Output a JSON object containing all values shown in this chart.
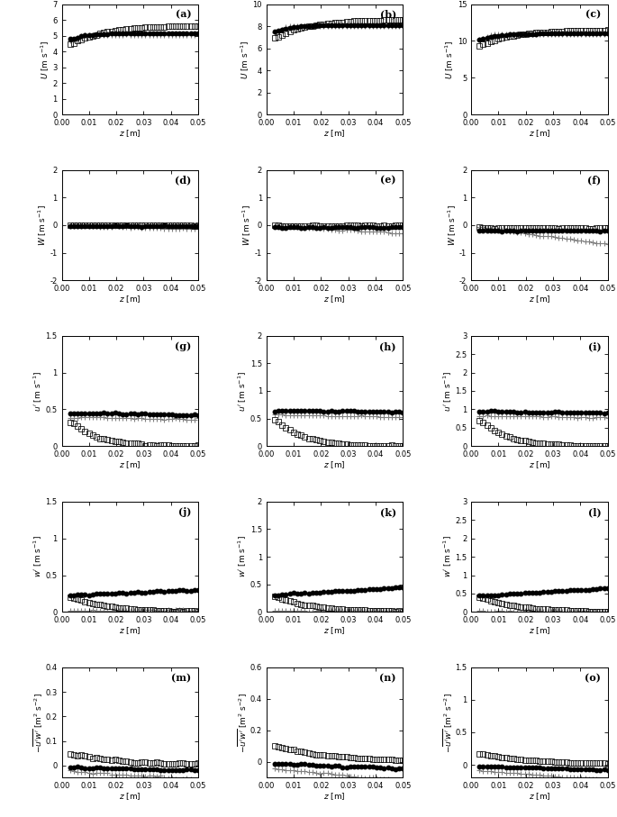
{
  "panels": [
    {
      "label": "(a)",
      "row": 0,
      "col": 0,
      "ylabel": "$U$ [m s$^{-1}$]",
      "ylim": [
        0,
        7
      ],
      "yticks": [
        0,
        1,
        2,
        3,
        4,
        5,
        6,
        7
      ]
    },
    {
      "label": "(b)",
      "row": 0,
      "col": 1,
      "ylabel": "$U$ [m s$^{-1}$]",
      "ylim": [
        0,
        10
      ],
      "yticks": [
        0,
        2,
        4,
        6,
        8,
        10
      ]
    },
    {
      "label": "(c)",
      "row": 0,
      "col": 2,
      "ylabel": "$U$ [m s$^{-1}$]",
      "ylim": [
        0,
        15
      ],
      "yticks": [
        0,
        5,
        10,
        15
      ]
    },
    {
      "label": "(d)",
      "row": 1,
      "col": 0,
      "ylabel": "$W$ [m s$^{-1}$]",
      "ylim": [
        -2,
        2
      ],
      "yticks": [
        -2,
        -1,
        0,
        1,
        2
      ]
    },
    {
      "label": "(e)",
      "row": 1,
      "col": 1,
      "ylabel": "$W$ [m s$^{-1}$]",
      "ylim": [
        -2,
        2
      ],
      "yticks": [
        -2,
        -1,
        0,
        1,
        2
      ]
    },
    {
      "label": "(f)",
      "row": 1,
      "col": 2,
      "ylabel": "$W$ [m s$^{-1}$]",
      "ylim": [
        -2,
        2
      ],
      "yticks": [
        -2,
        -1,
        0,
        1,
        2
      ]
    },
    {
      "label": "(g)",
      "row": 2,
      "col": 0,
      "ylabel": "$u^{\\prime}$ [m s$^{-1}$]",
      "ylim": [
        0,
        1.5
      ],
      "yticks": [
        0.0,
        0.5,
        1.0,
        1.5
      ]
    },
    {
      "label": "(h)",
      "row": 2,
      "col": 1,
      "ylabel": "$u^{\\prime}$ [m s$^{-1}$]",
      "ylim": [
        0,
        2.0
      ],
      "yticks": [
        0.0,
        0.5,
        1.0,
        1.5,
        2.0
      ]
    },
    {
      "label": "(i)",
      "row": 2,
      "col": 2,
      "ylabel": "$u^{\\prime}$ [m s$^{-1}$]",
      "ylim": [
        0,
        3.0
      ],
      "yticks": [
        0.0,
        0.5,
        1.0,
        1.5,
        2.0,
        2.5,
        3.0
      ]
    },
    {
      "label": "(j)",
      "row": 3,
      "col": 0,
      "ylabel": "$w^{\\prime}$ [m s$^{-1}$]",
      "ylim": [
        0,
        1.5
      ],
      "yticks": [
        0.0,
        0.5,
        1.0,
        1.5
      ]
    },
    {
      "label": "(k)",
      "row": 3,
      "col": 1,
      "ylabel": "$w^{\\prime}$ [m s$^{-1}$]",
      "ylim": [
        0,
        2.0
      ],
      "yticks": [
        0.0,
        0.5,
        1.0,
        1.5,
        2.0
      ]
    },
    {
      "label": "(l)",
      "row": 3,
      "col": 2,
      "ylabel": "$w^{\\prime}$ [m s$^{-1}$]",
      "ylim": [
        0,
        3.0
      ],
      "yticks": [
        0.0,
        0.5,
        1.0,
        1.5,
        2.0,
        2.5,
        3.0
      ]
    },
    {
      "label": "(m)",
      "row": 4,
      "col": 0,
      "ylabel": "$-\\overline{u^{\\prime}w^{\\prime}}$ [m$^2$ s$^{-2}$]",
      "ylim": [
        -0.05,
        0.4
      ],
      "yticks": [
        0.0,
        0.1,
        0.2,
        0.3,
        0.4
      ]
    },
    {
      "label": "(n)",
      "row": 4,
      "col": 1,
      "ylabel": "$-\\overline{u^{\\prime}w^{\\prime}}$ [m$^2$ s$^{-2}$]",
      "ylim": [
        -0.1,
        0.6
      ],
      "yticks": [
        0.0,
        0.2,
        0.4,
        0.6
      ]
    },
    {
      "label": "(o)",
      "row": 4,
      "col": 2,
      "ylabel": "$-\\overline{u^{\\prime}w^{\\prime}}$ [m$^2$ s$^{-2}$]",
      "ylim": [
        -0.2,
        1.5
      ],
      "yticks": [
        0.0,
        0.5,
        1.0,
        1.5
      ]
    }
  ],
  "xlim": [
    0.0,
    0.05
  ],
  "xticks": [
    0.0,
    0.01,
    0.02,
    0.03,
    0.04,
    0.05
  ],
  "xlabel": "$z$ [m]",
  "npts": 35
}
